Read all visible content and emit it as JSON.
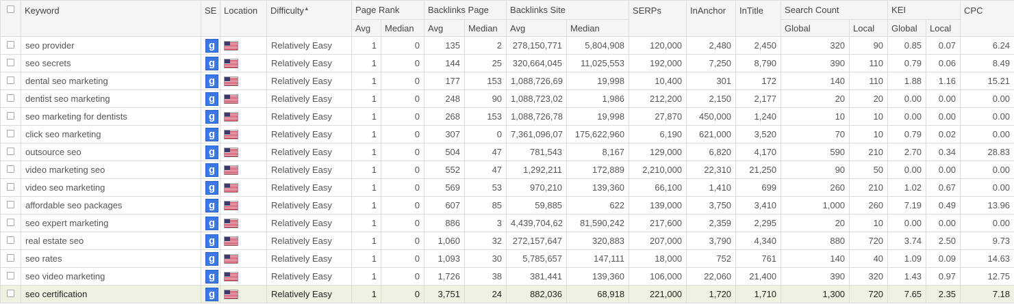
{
  "columns": {
    "keyword": "Keyword",
    "se": "SE",
    "location": "Location",
    "difficulty": "Difficulty",
    "page_rank": "Page Rank",
    "backlinks_page": "Backlinks Page",
    "backlinks_site": "Backlinks Site",
    "serps": "SERPs",
    "inanchor": "InAnchor",
    "intitle": "InTitle",
    "search_count": "Search Count",
    "kei": "KEI",
    "cpc": "CPC"
  },
  "subcolumns": {
    "avg": "Avg",
    "median": "Median",
    "global": "Global",
    "local": "Local"
  },
  "sort": {
    "column": "difficulty",
    "direction": "ascending",
    "indicator": "▲"
  },
  "se_icon": {
    "letter": "g",
    "name": "google-icon",
    "color": "#3b78e7"
  },
  "location_icon": {
    "name": "us-flag-icon"
  },
  "rows": [
    {
      "keyword": "seo provider",
      "difficulty": "Relatively Easy",
      "pr_avg": "1",
      "pr_median": "0",
      "bp_avg": "135",
      "bp_median": "2",
      "bs_avg": "278,150,771",
      "bs_median": "5,804,908",
      "serps": "120,000",
      "inanchor": "2,480",
      "intitle": "2,450",
      "sc_global": "320",
      "sc_local": "90",
      "kei_global": "0.85",
      "kei_local": "0.07",
      "cpc": "6.24"
    },
    {
      "keyword": "seo secrets",
      "difficulty": "Relatively Easy",
      "pr_avg": "1",
      "pr_median": "0",
      "bp_avg": "144",
      "bp_median": "25",
      "bs_avg": "320,664,045",
      "bs_median": "11,025,553",
      "serps": "192,000",
      "inanchor": "7,250",
      "intitle": "8,790",
      "sc_global": "390",
      "sc_local": "110",
      "kei_global": "0.79",
      "kei_local": "0.06",
      "cpc": "8.49"
    },
    {
      "keyword": "dental seo marketing",
      "difficulty": "Relatively Easy",
      "pr_avg": "1",
      "pr_median": "0",
      "bp_avg": "177",
      "bp_median": "153",
      "bs_avg": "1,088,726,69",
      "bs_median": "19,998",
      "serps": "10,400",
      "inanchor": "301",
      "intitle": "172",
      "sc_global": "140",
      "sc_local": "110",
      "kei_global": "1.88",
      "kei_local": "1.16",
      "cpc": "15.21"
    },
    {
      "keyword": "dentist seo marketing",
      "difficulty": "Relatively Easy",
      "pr_avg": "1",
      "pr_median": "0",
      "bp_avg": "248",
      "bp_median": "90",
      "bs_avg": "1,088,723,02",
      "bs_median": "1,986",
      "serps": "212,200",
      "inanchor": "2,150",
      "intitle": "2,177",
      "sc_global": "20",
      "sc_local": "20",
      "kei_global": "0.00",
      "kei_local": "0.00",
      "cpc": "0.00"
    },
    {
      "keyword": "seo marketing for dentists",
      "difficulty": "Relatively Easy",
      "pr_avg": "1",
      "pr_median": "0",
      "bp_avg": "268",
      "bp_median": "153",
      "bs_avg": "1,088,726,78",
      "bs_median": "19,998",
      "serps": "27,870",
      "inanchor": "450,000",
      "intitle": "1,240",
      "sc_global": "10",
      "sc_local": "10",
      "kei_global": "0.00",
      "kei_local": "0.00",
      "cpc": "0.00"
    },
    {
      "keyword": "click seo marketing",
      "difficulty": "Relatively Easy",
      "pr_avg": "1",
      "pr_median": "0",
      "bp_avg": "307",
      "bp_median": "0",
      "bs_avg": "7,361,096,07",
      "bs_median": "175,622,960",
      "serps": "6,190",
      "inanchor": "621,000",
      "intitle": "3,520",
      "sc_global": "70",
      "sc_local": "10",
      "kei_global": "0.79",
      "kei_local": "0.02",
      "cpc": "0.00"
    },
    {
      "keyword": "outsource seo",
      "difficulty": "Relatively Easy",
      "pr_avg": "1",
      "pr_median": "0",
      "bp_avg": "504",
      "bp_median": "47",
      "bs_avg": "781,543",
      "bs_median": "8,167",
      "serps": "129,000",
      "inanchor": "6,820",
      "intitle": "4,170",
      "sc_global": "590",
      "sc_local": "210",
      "kei_global": "2.70",
      "kei_local": "0.34",
      "cpc": "28.83"
    },
    {
      "keyword": "video marketing seo",
      "difficulty": "Relatively Easy",
      "pr_avg": "1",
      "pr_median": "0",
      "bp_avg": "552",
      "bp_median": "47",
      "bs_avg": "1,292,211",
      "bs_median": "172,889",
      "serps": "2,210,000",
      "inanchor": "22,310",
      "intitle": "21,250",
      "sc_global": "90",
      "sc_local": "50",
      "kei_global": "0.00",
      "kei_local": "0.00",
      "cpc": "0.00"
    },
    {
      "keyword": "video seo marketing",
      "difficulty": "Relatively Easy",
      "pr_avg": "1",
      "pr_median": "0",
      "bp_avg": "569",
      "bp_median": "53",
      "bs_avg": "970,210",
      "bs_median": "139,360",
      "serps": "66,100",
      "inanchor": "1,410",
      "intitle": "699",
      "sc_global": "260",
      "sc_local": "210",
      "kei_global": "1.02",
      "kei_local": "0.67",
      "cpc": "0.00"
    },
    {
      "keyword": "affordable seo packages",
      "difficulty": "Relatively Easy",
      "pr_avg": "1",
      "pr_median": "0",
      "bp_avg": "607",
      "bp_median": "85",
      "bs_avg": "59,885",
      "bs_median": "622",
      "serps": "139,000",
      "inanchor": "3,750",
      "intitle": "3,410",
      "sc_global": "1,000",
      "sc_local": "260",
      "kei_global": "7.19",
      "kei_local": "0.49",
      "cpc": "13.96"
    },
    {
      "keyword": "seo expert marketing",
      "difficulty": "Relatively Easy",
      "pr_avg": "1",
      "pr_median": "0",
      "bp_avg": "886",
      "bp_median": "3",
      "bs_avg": "4,439,704,62",
      "bs_median": "81,590,242",
      "serps": "217,600",
      "inanchor": "2,359",
      "intitle": "2,295",
      "sc_global": "20",
      "sc_local": "10",
      "kei_global": "0.00",
      "kei_local": "0.00",
      "cpc": "0.00"
    },
    {
      "keyword": "real estate seo",
      "difficulty": "Relatively Easy",
      "pr_avg": "1",
      "pr_median": "0",
      "bp_avg": "1,060",
      "bp_median": "32",
      "bs_avg": "272,157,647",
      "bs_median": "320,883",
      "serps": "207,000",
      "inanchor": "3,790",
      "intitle": "4,340",
      "sc_global": "880",
      "sc_local": "720",
      "kei_global": "3.74",
      "kei_local": "2.50",
      "cpc": "9.73"
    },
    {
      "keyword": "seo rates",
      "difficulty": "Relatively Easy",
      "pr_avg": "1",
      "pr_median": "0",
      "bp_avg": "1,093",
      "bp_median": "30",
      "bs_avg": "5,785,657",
      "bs_median": "147,111",
      "serps": "18,000",
      "inanchor": "752",
      "intitle": "761",
      "sc_global": "140",
      "sc_local": "40",
      "kei_global": "1.09",
      "kei_local": "0.09",
      "cpc": "14.63"
    },
    {
      "keyword": "seo video marketing",
      "difficulty": "Relatively Easy",
      "pr_avg": "1",
      "pr_median": "0",
      "bp_avg": "1,726",
      "bp_median": "38",
      "bs_avg": "381,441",
      "bs_median": "139,360",
      "serps": "106,000",
      "inanchor": "22,060",
      "intitle": "21,400",
      "sc_global": "390",
      "sc_local": "320",
      "kei_global": "1.43",
      "kei_local": "0.97",
      "cpc": "12.75"
    },
    {
      "keyword": "seo certification",
      "difficulty": "Relatively Easy",
      "pr_avg": "1",
      "pr_median": "0",
      "bp_avg": "3,751",
      "bp_median": "24",
      "bs_avg": "882,036",
      "bs_median": "68,918",
      "serps": "221,000",
      "inanchor": "1,720",
      "intitle": "1,710",
      "sc_global": "1,300",
      "sc_local": "720",
      "kei_global": "7.65",
      "kei_local": "2.35",
      "cpc": "7.18"
    }
  ],
  "selected_row": 14
}
